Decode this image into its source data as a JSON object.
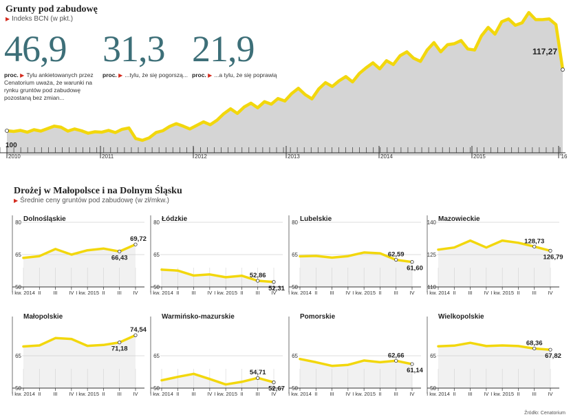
{
  "header": {
    "title": "Grunty pod zabudowę",
    "subtitle": "Indeks BCN (w pkt.)"
  },
  "stats": [
    {
      "value": "46,9",
      "unit": "proc.",
      "text": "Tylu ankietowanych przez Cenatorium uważa, że warunki na rynku gruntów pod zabudowę pozostaną bez zmian..."
    },
    {
      "value": "31,3",
      "unit": "proc.",
      "text": "...tylu, że się pogorszą..."
    },
    {
      "value": "21,9",
      "unit": "proc.",
      "text": "...a tylu, że się poprawią"
    }
  ],
  "section2": {
    "title": "Drożej w Małopolsce i na Dolnym Śląsku",
    "subtitle": "Średnie ceny gruntów pod zabudowę (w zł/mkw.)"
  },
  "source": "Źródło: Cenatorium",
  "colors": {
    "line": "#f2d70d",
    "area": "#d5d5d5",
    "accent": "#3d6f78",
    "marker": "#d42b1e"
  },
  "chart_data": [
    {
      "type": "area",
      "title": "Grunty pod zabudowę",
      "subtitle": "Indeks BCN (w pkt.)",
      "x_tick_labels": [
        "2010",
        "2011",
        "2012",
        "2013",
        "2014",
        "2015",
        "'16"
      ],
      "baseline_label": "100",
      "last_label": "117,27",
      "first_value": 100,
      "last_value": 117.27,
      "values": [
        100,
        99.8,
        100.1,
        99.6,
        100.3,
        99.9,
        100.6,
        101.3,
        101.0,
        99.9,
        100.5,
        100.0,
        99.3,
        99.7,
        99.6,
        100.1,
        99.5,
        100.4,
        100.8,
        97.8,
        97.3,
        98.0,
        99.5,
        100.0,
        101.2,
        102.0,
        101.3,
        100.5,
        101.5,
        102.5,
        101.7,
        103.0,
        104.8,
        106.2,
        104.9,
        106.7,
        107.8,
        106.5,
        108.2,
        107.5,
        109.1,
        108.4,
        110.5,
        112.0,
        110.2,
        109.0,
        111.8,
        113.6,
        112.5,
        114.1,
        115.3,
        113.8,
        116.2,
        117.8,
        119.2,
        117.5,
        119.8,
        118.7,
        121.2,
        122.3,
        120.5,
        119.6,
        122.8,
        124.9,
        122.3,
        124.3,
        124.6,
        125.5,
        123.1,
        122.8,
        126.8,
        129.2,
        127.3,
        130.8,
        131.6,
        129.8,
        130.5,
        133.4,
        131.4,
        131.4,
        131.6,
        130.0,
        117.27
      ],
      "ylim": [
        93,
        135
      ]
    },
    {
      "type": "line",
      "title": "Dolnośląskie",
      "categories": [
        "I kw. 2014",
        "II",
        "III",
        "IV",
        "I kw. 2015",
        "II",
        "III",
        "IV"
      ],
      "yticks": [
        "80",
        "65",
        "50"
      ],
      "ylim": [
        50,
        80
      ],
      "values": [
        63.5,
        64.3,
        67.6,
        65.0,
        67.0,
        67.8,
        66.43,
        69.72
      ],
      "labels": [
        "66,43",
        "69,72"
      ]
    },
    {
      "type": "line",
      "title": "Łódzkie",
      "categories": [
        "I kw. 2014",
        "II",
        "III",
        "IV",
        "I kw. 2015",
        "II",
        "III",
        "IV"
      ],
      "yticks": [
        "80",
        "65",
        "50"
      ],
      "ylim": [
        50,
        80
      ],
      "values": [
        58.0,
        57.6,
        55.3,
        55.8,
        54.5,
        55.2,
        52.86,
        52.31
      ],
      "labels": [
        "52,86",
        "52,31"
      ]
    },
    {
      "type": "line",
      "title": "Lubelskie",
      "categories": [
        "I kw. 2014",
        "II",
        "III",
        "IV",
        "I kw. 2015",
        "II",
        "III",
        "IV"
      ],
      "yticks": [
        "80",
        "65",
        "50"
      ],
      "ylim": [
        50,
        80
      ],
      "values": [
        64.2,
        64.4,
        63.6,
        64.3,
        66.0,
        65.6,
        62.59,
        61.6
      ],
      "labels": [
        "62,59",
        "61,60"
      ]
    },
    {
      "type": "line",
      "title": "Mazowieckie",
      "categories": [
        "I kw. 2014",
        "II",
        "III",
        "IV",
        "I kw. 2015",
        "II",
        "III",
        "IV"
      ],
      "yticks": [
        "140",
        "125",
        "110"
      ],
      "ylim": [
        110,
        140
      ],
      "values": [
        127.3,
        128.3,
        131.5,
        128.3,
        131.5,
        130.5,
        128.73,
        126.79
      ],
      "labels": [
        "128,73",
        "126,79"
      ]
    },
    {
      "type": "line",
      "title": "Małopolskie",
      "categories": [
        "I kw. 2014",
        "II",
        "III",
        "IV",
        "I kw. 2015",
        "II",
        "III",
        "IV"
      ],
      "yticks": [
        "65",
        "50"
      ],
      "ylim": [
        50,
        80
      ],
      "values": [
        69.3,
        69.8,
        73.2,
        72.8,
        69.6,
        70.0,
        71.18,
        74.54
      ],
      "labels": [
        "71,18",
        "74,54"
      ]
    },
    {
      "type": "line",
      "title": "Warmińsko-mazurskie",
      "categories": [
        "I kw. 2014",
        "II",
        "III",
        "IV",
        "I kw. 2015",
        "II",
        "III",
        "IV"
      ],
      "yticks": [
        "65",
        "50"
      ],
      "ylim": [
        50,
        80
      ],
      "values": [
        53.6,
        55.2,
        56.6,
        54.2,
        51.7,
        52.9,
        54.71,
        52.67
      ],
      "labels": [
        "54,71",
        "52,67"
      ]
    },
    {
      "type": "line",
      "title": "Pomorskie",
      "categories": [
        "I kw. 2014",
        "II",
        "III",
        "IV",
        "I kw. 2015",
        "II",
        "III",
        "IV"
      ],
      "yticks": [
        "65",
        "50"
      ],
      "ylim": [
        50,
        80
      ],
      "values": [
        63.5,
        62.0,
        60.3,
        60.8,
        62.8,
        62.0,
        62.66,
        61.14
      ],
      "labels": [
        "62,66",
        "61,14"
      ]
    },
    {
      "type": "line",
      "title": "Wielkopolskie",
      "categories": [
        "I kw. 2014",
        "II",
        "III",
        "IV",
        "I kw. 2015",
        "II",
        "III",
        "IV"
      ],
      "yticks": [
        "65",
        "50"
      ],
      "ylim": [
        50,
        80
      ],
      "values": [
        69.4,
        69.7,
        71.0,
        69.5,
        69.8,
        69.5,
        68.36,
        67.82
      ],
      "labels": [
        "68,36",
        "67,82"
      ]
    }
  ]
}
